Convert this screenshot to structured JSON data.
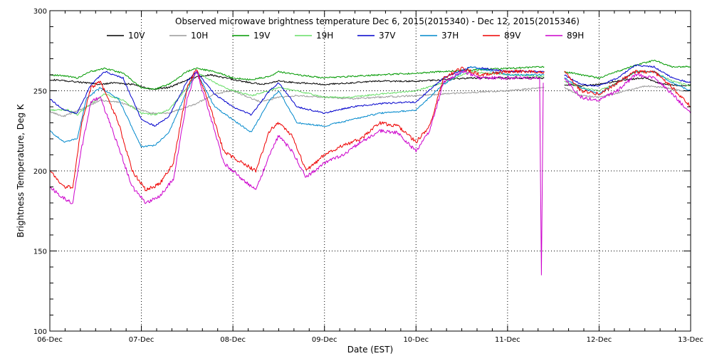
{
  "chart_data": {
    "type": "line",
    "title": "Observed microwave brightness temperature Dec  6, 2015(2015340) - Dec 12, 2015(2015346)",
    "xlabel": "Date (EST)",
    "ylabel": "Brightness Temperature, Deg K",
    "ylim": [
      100,
      300
    ],
    "xlim": [
      0,
      7
    ],
    "grid": true,
    "legend_position": "top",
    "x_ticks": [
      {
        "value": 0,
        "label": "06-Dec"
      },
      {
        "value": 1,
        "label": "07-Dec"
      },
      {
        "value": 2,
        "label": "08-Dec"
      },
      {
        "value": 3,
        "label": "09-Dec"
      },
      {
        "value": 4,
        "label": "10-Dec"
      },
      {
        "value": 5,
        "label": "11-Dec"
      },
      {
        "value": 6,
        "label": "12-Dec"
      },
      {
        "value": 7,
        "label": "13-Dec"
      }
    ],
    "y_ticks": [
      100,
      150,
      200,
      250,
      300
    ],
    "gap": [
      5.45,
      5.62
    ],
    "series": [
      {
        "name": "10V",
        "color": "#000000",
        "x": [
          0,
          0.2,
          0.4,
          0.55,
          0.7,
          0.9,
          1.1,
          1.3,
          1.55,
          1.75,
          2.0,
          2.3,
          2.5,
          2.7,
          3.0,
          3.3,
          3.6,
          4.0,
          4.3,
          4.6,
          5.0,
          5.4,
          5.62,
          5.8,
          6.0,
          6.3,
          6.5,
          6.7,
          6.9,
          7.0
        ],
        "y": [
          257,
          256,
          255,
          254,
          255,
          254,
          251,
          252,
          258,
          260,
          257,
          254,
          256,
          255,
          254,
          255,
          256,
          256,
          257,
          258,
          258,
          258,
          254,
          253,
          254,
          257,
          258,
          254,
          253,
          254
        ]
      },
      {
        "name": "10H",
        "color": "#999999",
        "x": [
          0,
          0.15,
          0.4,
          0.55,
          0.75,
          0.9,
          1.1,
          1.3,
          1.45,
          1.6,
          1.8,
          2.0,
          2.3,
          2.5,
          2.7,
          3.0,
          3.3,
          3.6,
          4.0,
          4.3,
          4.6,
          5.0,
          5.4,
          5.62,
          5.8,
          6.0,
          6.3,
          6.5,
          6.7,
          6.9,
          7.0
        ],
        "y": [
          237,
          234,
          240,
          244,
          243,
          240,
          236,
          236,
          239,
          242,
          248,
          250,
          243,
          246,
          247,
          246,
          245,
          246,
          247,
          248,
          249,
          250,
          252,
          252,
          247,
          246,
          250,
          253,
          252,
          250,
          250
        ]
      },
      {
        "name": "19V",
        "color": "#009900",
        "x": [
          0,
          0.2,
          0.3,
          0.45,
          0.6,
          0.8,
          1.0,
          1.15,
          1.3,
          1.5,
          1.6,
          1.8,
          2.0,
          2.2,
          2.4,
          2.5,
          2.7,
          3.0,
          3.3,
          3.6,
          4.0,
          4.3,
          4.6,
          5.0,
          5.4,
          5.62,
          5.8,
          6.0,
          6.2,
          6.4,
          6.6,
          6.8,
          7.0
        ],
        "y": [
          260,
          259,
          258,
          262,
          264,
          261,
          252,
          251,
          254,
          262,
          264,
          262,
          258,
          257,
          259,
          262,
          260,
          258,
          259,
          260,
          261,
          262,
          263,
          264,
          265,
          262,
          260,
          258,
          262,
          266,
          269,
          265,
          265
        ]
      },
      {
        "name": "19H",
        "color": "#66dd66",
        "x": [
          0,
          0.2,
          0.3,
          0.45,
          0.6,
          0.8,
          1.0,
          1.15,
          1.3,
          1.5,
          1.6,
          1.8,
          2.0,
          2.2,
          2.4,
          2.5,
          2.7,
          3.0,
          3.3,
          3.6,
          4.0,
          4.3,
          4.6,
          5.0,
          5.4,
          5.62,
          5.8,
          6.0,
          6.2,
          6.4,
          6.6,
          6.8,
          7.0
        ],
        "y": [
          238,
          238,
          235,
          242,
          248,
          244,
          236,
          235,
          238,
          252,
          262,
          255,
          250,
          247,
          250,
          252,
          250,
          246,
          246,
          248,
          250,
          255,
          262,
          260,
          259,
          256,
          252,
          250,
          255,
          262,
          262,
          256,
          253
        ]
      },
      {
        "name": "37V",
        "color": "#0000cc",
        "x": [
          0,
          0.15,
          0.3,
          0.45,
          0.6,
          0.8,
          1.0,
          1.15,
          1.3,
          1.5,
          1.6,
          1.8,
          2.0,
          2.2,
          2.4,
          2.5,
          2.7,
          3.0,
          3.3,
          3.6,
          4.0,
          4.3,
          4.6,
          5.0,
          5.4,
          5.62,
          5.8,
          6.0,
          6.2,
          6.4,
          6.6,
          6.8,
          7.0
        ],
        "y": [
          245,
          238,
          236,
          254,
          262,
          258,
          232,
          228,
          234,
          256,
          262,
          248,
          240,
          235,
          250,
          255,
          240,
          236,
          240,
          242,
          243,
          258,
          265,
          262,
          262,
          260,
          254,
          253,
          258,
          266,
          265,
          258,
          255
        ]
      },
      {
        "name": "37H",
        "color": "#0088cc",
        "x": [
          0,
          0.15,
          0.3,
          0.4,
          0.55,
          0.75,
          1.0,
          1.15,
          1.3,
          1.5,
          1.6,
          1.8,
          2.0,
          2.2,
          2.4,
          2.5,
          2.7,
          3.0,
          3.3,
          3.6,
          4.0,
          4.3,
          4.6,
          5.0,
          5.4,
          5.62,
          5.8,
          6.0,
          6.2,
          6.4,
          6.6,
          6.8,
          7.0
        ],
        "y": [
          225,
          218,
          220,
          245,
          252,
          245,
          215,
          216,
          224,
          250,
          262,
          240,
          232,
          224,
          244,
          250,
          230,
          228,
          232,
          236,
          238,
          254,
          265,
          260,
          260,
          258,
          252,
          248,
          255,
          262,
          262,
          255,
          250
        ]
      },
      {
        "name": "89V",
        "color": "#ee0000",
        "x": [
          0,
          0.15,
          0.25,
          0.35,
          0.45,
          0.55,
          0.75,
          0.9,
          1.05,
          1.2,
          1.35,
          1.5,
          1.6,
          1.75,
          1.9,
          2.1,
          2.25,
          2.4,
          2.5,
          2.65,
          2.8,
          3.0,
          3.2,
          3.4,
          3.6,
          3.8,
          4.0,
          4.15,
          4.3,
          4.5,
          4.7,
          5.0,
          5.4,
          5.62,
          5.8,
          6.0,
          6.2,
          6.4,
          6.6,
          6.8,
          7.0
        ],
        "y": [
          200,
          190,
          190,
          230,
          252,
          256,
          230,
          200,
          188,
          192,
          205,
          252,
          264,
          240,
          212,
          205,
          200,
          225,
          230,
          222,
          200,
          210,
          216,
          220,
          230,
          228,
          218,
          228,
          258,
          264,
          260,
          262,
          262,
          262,
          250,
          248,
          255,
          262,
          262,
          252,
          240
        ]
      },
      {
        "name": "89H",
        "color": "#cc00cc",
        "x": [
          0,
          0.15,
          0.25,
          0.35,
          0.45,
          0.55,
          0.75,
          0.9,
          1.05,
          1.2,
          1.35,
          1.5,
          1.6,
          1.75,
          1.9,
          2.1,
          2.25,
          2.4,
          2.5,
          2.65,
          2.8,
          3.0,
          3.2,
          3.4,
          3.6,
          3.8,
          4.0,
          4.15,
          4.3,
          4.5,
          4.7,
          5.0,
          5.35,
          5.37,
          5.39,
          5.62,
          5.8,
          6.0,
          6.2,
          6.4,
          6.6,
          6.8,
          7.0
        ],
        "y": [
          190,
          183,
          180,
          215,
          243,
          246,
          215,
          190,
          180,
          184,
          195,
          245,
          263,
          235,
          205,
          195,
          188,
          210,
          222,
          212,
          196,
          205,
          210,
          218,
          225,
          224,
          212,
          225,
          255,
          262,
          258,
          258,
          258,
          135,
          255,
          258,
          246,
          244,
          250,
          260,
          258,
          248,
          236
        ]
      }
    ]
  }
}
